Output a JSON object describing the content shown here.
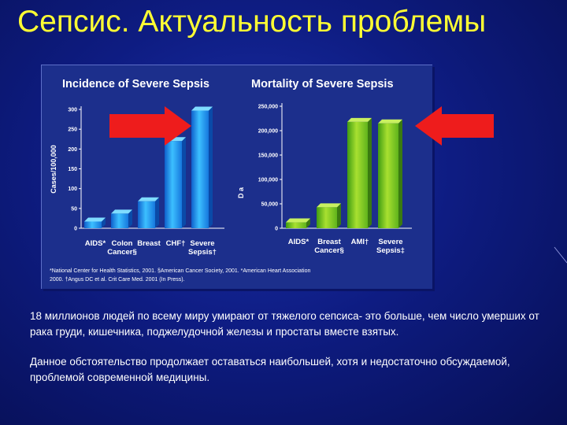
{
  "slide": {
    "title": "Сепсис. Актуальность проблемы",
    "paragraph1": "18 миллионов людей по всему миру умирают от тяжелого сепсиса- это больше, чем число умерших от рака груди, кишечника, поджелудочной железы и простаты вместе взятых.",
    "paragraph2": "Данное обстоятельство продолжает оставаться наибольшей, хотя и недостаточно обсуждаемой, проблемой современной медицины."
  },
  "colors": {
    "arrow": "#ee1c1c",
    "bar_blue": "#2aa6ee",
    "bar_green": "#8ccd2a",
    "axis": "#ffffff"
  },
  "chart_data": [
    {
      "type": "bar",
      "title": "Incidence of Severe Sepsis",
      "ylabel": "Cases/100,000",
      "categories": [
        "AIDS*",
        "Colon Cancer§",
        "Breast Cancer§",
        "CHF†",
        "Severe Sepsis†"
      ],
      "category_lines": [
        [
          "AIDS*"
        ],
        [
          "Colon",
          "Cancer§"
        ],
        [
          "Breast",
          ""
        ],
        [
          "CHF†"
        ],
        [
          "Severe",
          "Sepsis†"
        ]
      ],
      "values": [
        17,
        37,
        68,
        220,
        297
      ],
      "ylim": [
        0,
        300
      ],
      "yticks": [
        0,
        50,
        100,
        150,
        200,
        250,
        300
      ],
      "ytick_labels": [
        "0",
        "50",
        "100",
        "150",
        "200",
        "250",
        "300"
      ],
      "highlight_arrow": "right-pointing, at Severe Sepsis"
    },
    {
      "type": "bar",
      "title": "Mortality of Severe Sepsis",
      "ylabel": "D a",
      "categories": [
        "AIDS*",
        "Breast Cancer§",
        "AMI†",
        "Severe Sepsis‡"
      ],
      "category_lines": [
        [
          "AIDS*"
        ],
        [
          "Breast",
          "Cancer§"
        ],
        [
          "AMI†"
        ],
        [
          "Severe",
          "Sepsis‡"
        ]
      ],
      "values": [
        12000,
        43000,
        218000,
        215000
      ],
      "ylim": [
        0,
        250000
      ],
      "yticks": [
        0,
        50000,
        100000,
        150000,
        200000,
        250000
      ],
      "ytick_labels": [
        "0",
        "50,000",
        "100,000",
        "150,000",
        "200,000",
        "250,000"
      ],
      "highlight_arrow": "left-pointing, at Severe Sepsis"
    }
  ],
  "footnote": {
    "line1": "*National Center for Health Statistics, 2001. §American Cancer Society, 2001. *American Heart Association",
    "line2": "2000. †Angus DC et al. Crit Care Med. 2001 (In Press)."
  }
}
